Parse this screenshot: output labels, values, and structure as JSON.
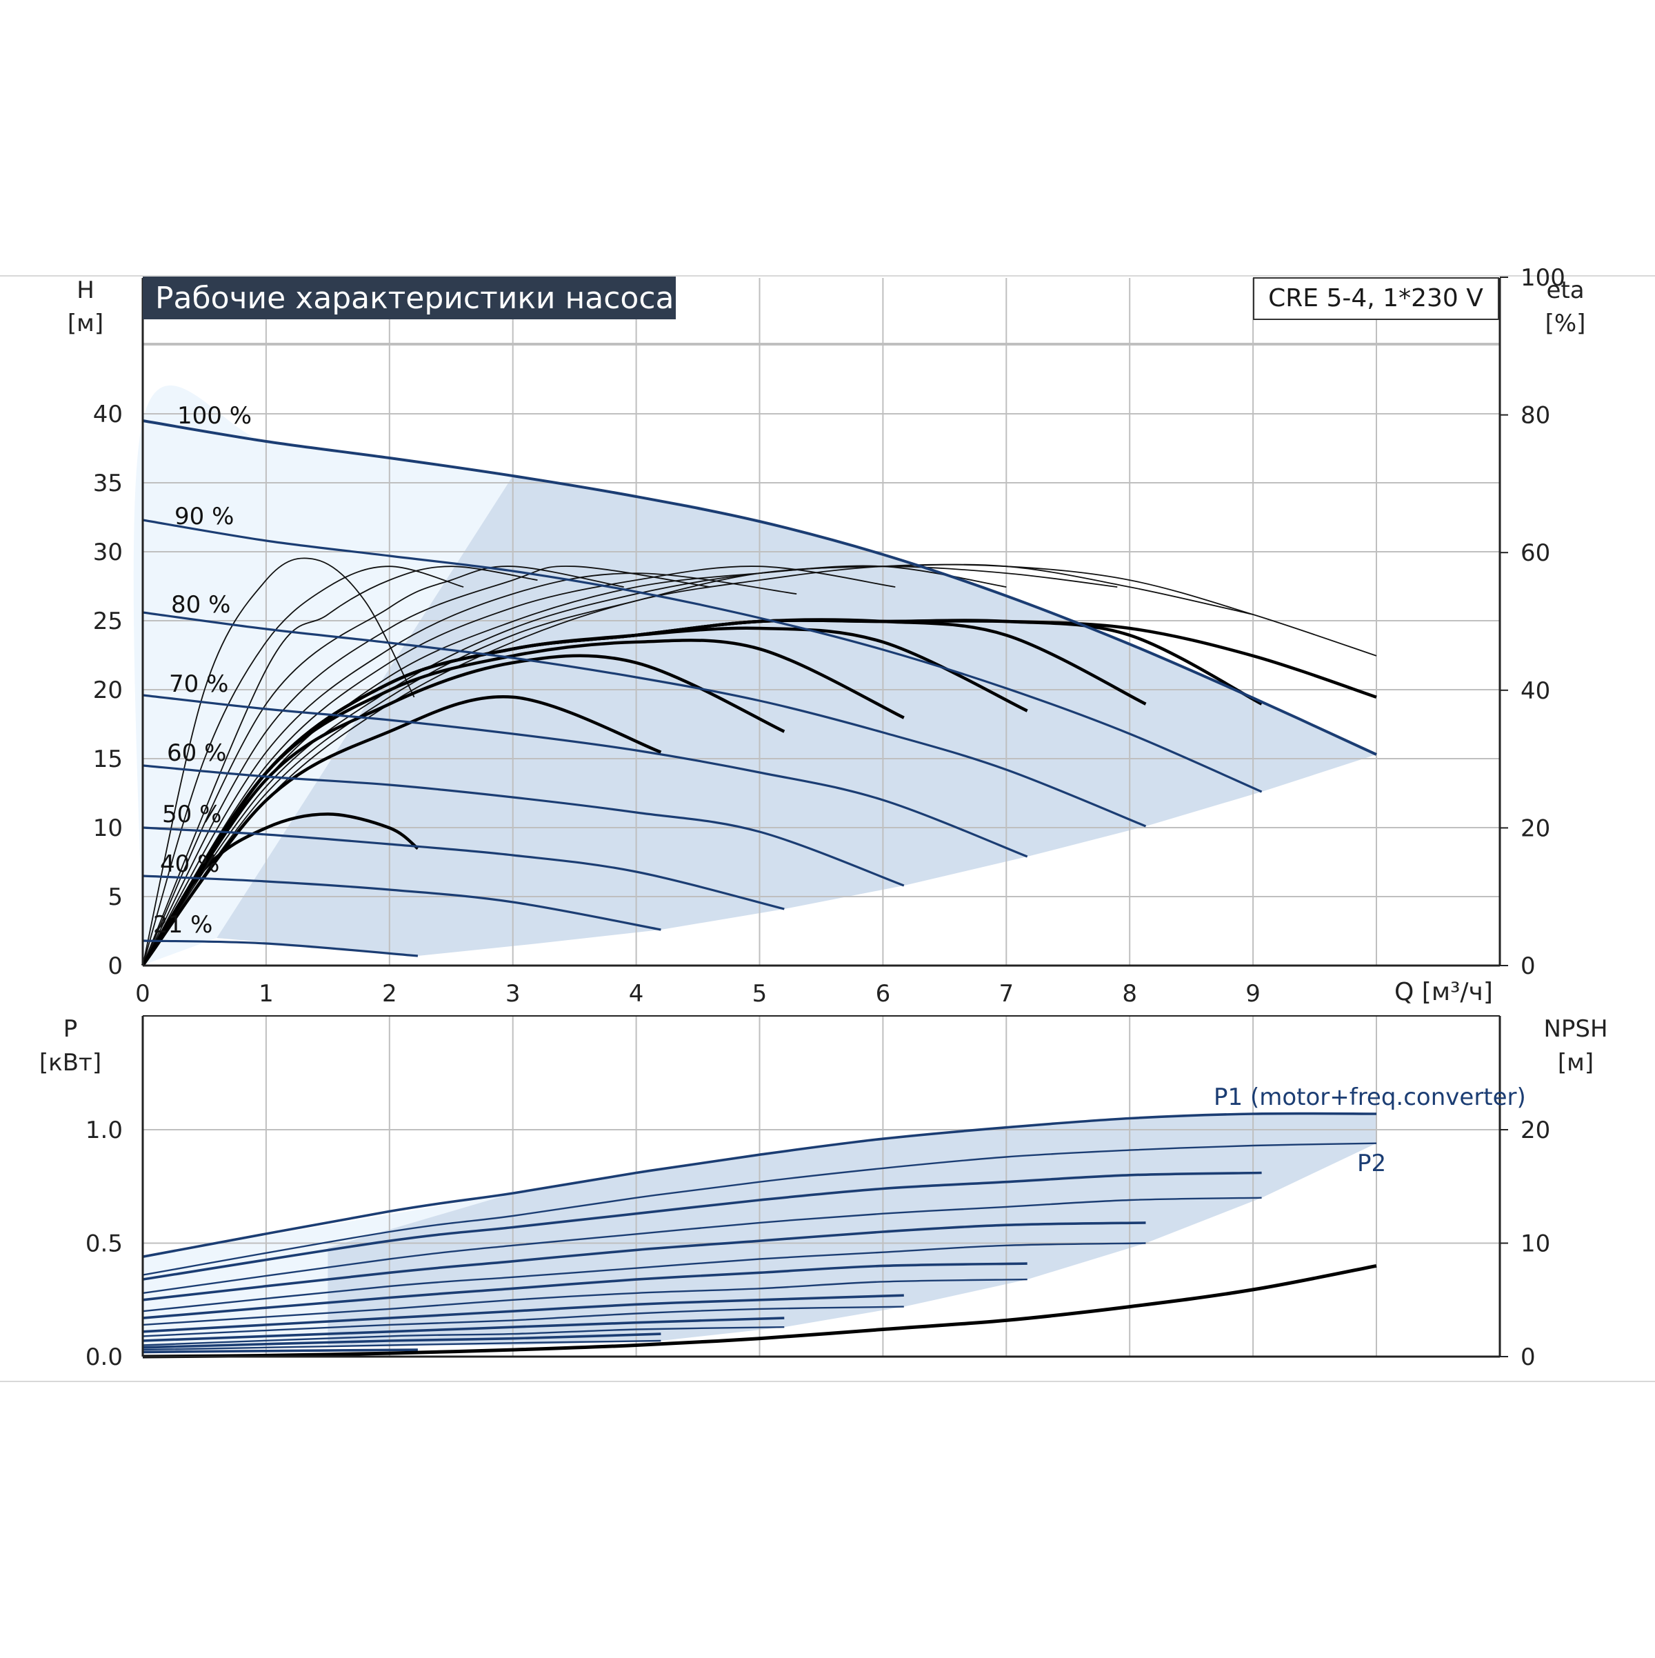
{
  "title": "Рабочие характеристики насоса",
  "model": "CRE 5-4, 1*230 V",
  "colors": {
    "curve": "#1b3d73",
    "zone": "#d2dfee",
    "zone_light": "#eef6fd",
    "grid": "#bfbfbf",
    "title_bg": "#2f3c4f"
  },
  "chart_data": [
    {
      "type": "line",
      "name": "head",
      "xlabel": "Q [м³/ч]",
      "ylabel_symbol": "H",
      "ylabel_unit": "[м]",
      "y2label_symbol": "eta",
      "y2label_unit": "[%]",
      "xlim": [
        0,
        10
      ],
      "ylim": [
        0,
        45
      ],
      "y2lim": [
        0,
        100
      ],
      "x_ticks": [
        0,
        1,
        2,
        3,
        4,
        5,
        6,
        7,
        8,
        9
      ],
      "y_ticks": [
        0,
        5,
        10,
        15,
        20,
        25,
        30,
        35,
        40
      ],
      "y2_ticks": [
        0,
        20,
        40,
        60,
        80,
        100
      ],
      "grid": true,
      "speed_curves": [
        {
          "name": "100 %",
          "x": [
            0,
            1,
            2,
            3,
            4,
            5,
            6,
            7,
            8,
            9,
            10
          ],
          "y": [
            39.5,
            38.0,
            36.8,
            35.5,
            34.0,
            32.2,
            29.8,
            26.8,
            23.3,
            19.4,
            15.3
          ]
        },
        {
          "name": "90 %",
          "x": [
            0,
            1,
            2,
            3,
            4,
            5,
            6,
            7,
            8,
            9.07
          ],
          "y": [
            32.3,
            30.8,
            29.7,
            28.6,
            27.1,
            25.2,
            22.9,
            20.1,
            16.8,
            12.6
          ]
        },
        {
          "name": "80 %",
          "x": [
            0,
            1,
            2,
            3,
            4,
            5,
            6,
            7,
            8.13
          ],
          "y": [
            25.6,
            24.4,
            23.4,
            22.3,
            20.9,
            19.2,
            16.9,
            14.2,
            10.1
          ]
        },
        {
          "name": "70 %",
          "x": [
            0,
            1,
            2,
            3,
            4,
            5,
            6,
            7.17
          ],
          "y": [
            19.6,
            18.6,
            17.8,
            16.8,
            15.6,
            14.0,
            12.0,
            7.9
          ]
        },
        {
          "name": "60 %",
          "x": [
            0,
            1,
            2,
            3,
            4,
            5,
            6.17
          ],
          "y": [
            14.5,
            13.7,
            13.1,
            12.2,
            11.1,
            9.7,
            5.8
          ]
        },
        {
          "name": "50 %",
          "x": [
            0,
            1,
            2,
            3,
            4,
            5.2
          ],
          "y": [
            10.0,
            9.5,
            8.8,
            8.0,
            6.8,
            4.1
          ]
        },
        {
          "name": "40 %",
          "x": [
            0,
            1,
            2,
            3,
            4.2
          ],
          "y": [
            6.5,
            6.1,
            5.5,
            4.6,
            2.6
          ]
        },
        {
          "name": "21 %",
          "x": [
            0,
            1,
            2.23
          ],
          "y": [
            1.8,
            1.6,
            0.7
          ]
        }
      ],
      "efficiency_curves": [
        {
          "x": [
            0,
            0.5,
            1,
            1.4,
            1.8,
            2.2
          ],
          "y": [
            0,
            40,
            56,
            59,
            53,
            39
          ]
        },
        {
          "x": [
            0,
            0.5,
            1,
            1.5,
            2,
            2.6
          ],
          "y": [
            0,
            30,
            47,
            55,
            58,
            55
          ]
        },
        {
          "x": [
            0,
            1,
            1.5,
            2,
            2.5,
            3.2
          ],
          "y": [
            0,
            43,
            51,
            56,
            58,
            56
          ]
        },
        {
          "x": [
            0,
            1,
            2,
            2.5,
            3,
            3.9
          ],
          "y": [
            0,
            38,
            52,
            56,
            58,
            55
          ]
        },
        {
          "x": [
            0,
            1,
            2,
            3,
            3.5,
            4.6
          ],
          "y": [
            0,
            34,
            49,
            56,
            58,
            55
          ]
        },
        {
          "x": [
            0,
            1,
            2,
            3,
            4,
            5.3
          ],
          "y": [
            0,
            31,
            46,
            54,
            57,
            54
          ]
        },
        {
          "x": [
            0,
            1,
            2,
            3,
            4,
            5,
            6.1
          ],
          "y": [
            0,
            29,
            44,
            52,
            56,
            58,
            55
          ]
        },
        {
          "x": [
            0,
            1,
            2,
            3,
            4,
            5,
            6,
            7.0
          ],
          "y": [
            0,
            27,
            42,
            50,
            55,
            57,
            58,
            55
          ]
        },
        {
          "x": [
            0,
            1,
            2,
            3,
            4,
            5,
            6,
            7,
            7.9
          ],
          "y": [
            0,
            26,
            40,
            49,
            54,
            57,
            58,
            57,
            55
          ]
        },
        {
          "x": [
            0,
            1,
            2,
            3,
            4,
            5,
            6,
            7,
            8,
            9.0
          ],
          "y": [
            0,
            25,
            39,
            48,
            53,
            57,
            58,
            58,
            55,
            51
          ]
        },
        {
          "x": [
            0,
            1,
            2,
            3,
            4,
            5,
            6,
            7,
            8,
            9,
            10
          ],
          "y": [
            0,
            24,
            38,
            47,
            53,
            56,
            58,
            58,
            56,
            51,
            45
          ]
        }
      ],
      "efficiency_thick_curves": [
        {
          "x": [
            0,
            0.5,
            1,
            1.5,
            2,
            2.23
          ],
          "y": [
            0,
            14,
            20,
            22,
            20,
            17
          ]
        },
        {
          "x": [
            0,
            1,
            2,
            3,
            4.2
          ],
          "y": [
            0,
            24,
            34,
            39,
            31
          ]
        },
        {
          "x": [
            0,
            1,
            2,
            3,
            4,
            5.2
          ],
          "y": [
            0,
            27,
            38,
            44,
            44,
            34
          ]
        },
        {
          "x": [
            0,
            1,
            2,
            3,
            4,
            5,
            6.17
          ],
          "y": [
            0,
            28,
            40,
            45,
            47,
            46,
            36
          ]
        },
        {
          "x": [
            0,
            1,
            2,
            3,
            4,
            5,
            6,
            7.17
          ],
          "y": [
            0,
            28,
            41,
            46,
            48,
            49,
            47,
            37
          ]
        },
        {
          "x": [
            0,
            1,
            2,
            3,
            4,
            5,
            6,
            7,
            8.13
          ],
          "y": [
            0,
            28,
            41,
            46,
            48,
            50,
            50,
            48,
            38
          ]
        },
        {
          "x": [
            0,
            1,
            2,
            3,
            4,
            5,
            6,
            7,
            8,
            9.07
          ],
          "y": [
            0,
            28,
            41,
            46,
            48,
            50,
            50,
            50,
            48,
            38
          ]
        },
        {
          "x": [
            0,
            1,
            2,
            3,
            4,
            5,
            6,
            7,
            8,
            9,
            10
          ],
          "y": [
            0,
            28,
            41,
            46,
            48,
            50,
            50,
            50,
            49,
            45,
            39
          ]
        }
      ],
      "operating_zone": {
        "x": [
          0.6,
          3.0,
          3.6,
          4.5,
          5.5,
          6.5,
          7.5,
          8.5,
          9.5,
          10,
          9.07,
          8.13,
          7.17,
          6.17,
          5.2,
          4.2,
          3.2,
          2.23,
          0.6
        ],
        "y": [
          2.0,
          35.5,
          34.7,
          33.3,
          31.1,
          28.4,
          25.1,
          21.4,
          17.3,
          15.3,
          12.6,
          10.1,
          7.9,
          5.8,
          4.1,
          2.6,
          1.6,
          0.7,
          2.0
        ]
      }
    },
    {
      "type": "line",
      "name": "power",
      "ylabel_symbol": "P",
      "ylabel_unit": "[кВт]",
      "y2label_symbol": "NPSH",
      "y2label_unit": "[м]",
      "xlim": [
        0,
        10
      ],
      "ylim": [
        0,
        1.4
      ],
      "y2lim": [
        0,
        28
      ],
      "y_ticks": [
        0.0,
        0.5,
        1.0
      ],
      "y_tick_labels": [
        "0.0",
        "0.5",
        "1.0"
      ],
      "y2_ticks": [
        0,
        10,
        20
      ],
      "grid": true,
      "series_labels": {
        "p1": "P1 (motor+freq.converter)",
        "p2": "P2"
      },
      "p1_curves": [
        {
          "x": [
            0,
            2,
            3,
            4,
            5,
            6,
            7,
            8,
            9,
            10
          ],
          "y": [
            0.44,
            0.64,
            0.72,
            0.81,
            0.89,
            0.96,
            1.01,
            1.05,
            1.07,
            1.07
          ]
        },
        {
          "x": [
            0,
            2,
            3,
            4,
            5,
            6,
            7,
            8,
            9.07
          ],
          "y": [
            0.34,
            0.51,
            0.57,
            0.63,
            0.69,
            0.74,
            0.77,
            0.8,
            0.81
          ]
        },
        {
          "x": [
            0,
            2,
            3,
            4,
            5,
            6,
            7,
            8.13
          ],
          "y": [
            0.25,
            0.37,
            0.42,
            0.47,
            0.51,
            0.55,
            0.58,
            0.59
          ]
        },
        {
          "x": [
            0,
            2,
            3,
            4,
            5,
            6,
            7.17
          ],
          "y": [
            0.17,
            0.26,
            0.3,
            0.34,
            0.37,
            0.4,
            0.41
          ]
        },
        {
          "x": [
            0,
            2,
            3,
            4,
            5,
            6.17
          ],
          "y": [
            0.11,
            0.17,
            0.2,
            0.23,
            0.25,
            0.27
          ]
        },
        {
          "x": [
            0,
            2,
            3,
            4,
            5.2
          ],
          "y": [
            0.07,
            0.11,
            0.13,
            0.15,
            0.17
          ]
        },
        {
          "x": [
            0,
            2,
            3,
            4.2
          ],
          "y": [
            0.04,
            0.07,
            0.08,
            0.1
          ]
        },
        {
          "x": [
            0,
            1,
            2.23
          ],
          "y": [
            0.02,
            0.025,
            0.03
          ]
        }
      ],
      "p2_curves": [
        {
          "x": [
            0,
            2,
            3,
            4,
            5,
            6,
            7,
            8,
            9,
            10
          ],
          "y": [
            0.36,
            0.55,
            0.62,
            0.7,
            0.77,
            0.83,
            0.88,
            0.91,
            0.93,
            0.94
          ]
        },
        {
          "x": [
            0,
            2,
            3,
            4,
            5,
            6,
            7,
            8,
            9.07
          ],
          "y": [
            0.28,
            0.43,
            0.49,
            0.54,
            0.59,
            0.63,
            0.66,
            0.69,
            0.7
          ]
        },
        {
          "x": [
            0,
            2,
            3,
            4,
            5,
            6,
            7,
            8.13
          ],
          "y": [
            0.2,
            0.31,
            0.35,
            0.39,
            0.43,
            0.46,
            0.49,
            0.5
          ]
        },
        {
          "x": [
            0,
            2,
            3,
            4,
            5,
            6,
            7.17
          ],
          "y": [
            0.14,
            0.21,
            0.25,
            0.28,
            0.3,
            0.33,
            0.34
          ]
        },
        {
          "x": [
            0,
            2,
            3,
            4,
            5,
            6.17
          ],
          "y": [
            0.09,
            0.14,
            0.16,
            0.19,
            0.21,
            0.22
          ]
        },
        {
          "x": [
            0,
            2,
            3,
            4,
            5.2
          ],
          "y": [
            0.05,
            0.09,
            0.1,
            0.12,
            0.13
          ]
        },
        {
          "x": [
            0,
            2,
            3,
            4.2
          ],
          "y": [
            0.03,
            0.05,
            0.06,
            0.07
          ]
        }
      ],
      "npsh_curve": {
        "x": [
          0,
          1,
          2,
          3,
          4,
          5,
          6,
          7,
          8,
          9,
          10
        ],
        "y": [
          0,
          0.1,
          0.3,
          0.6,
          1.0,
          1.6,
          2.4,
          3.2,
          4.4,
          5.9,
          8.0
        ]
      },
      "operating_zone": {
        "x": [
          1.5,
          3.0,
          4.0,
          5.0,
          6.0,
          7.0,
          8.0,
          9.0,
          10.0,
          10.0,
          9.07,
          8.13,
          7.17,
          6.17,
          5.2,
          4.2,
          3.0,
          1.5
        ],
        "y": [
          0.48,
          0.72,
          0.81,
          0.89,
          0.96,
          1.01,
          1.05,
          1.07,
          1.07,
          0.94,
          0.7,
          0.5,
          0.34,
          0.22,
          0.13,
          0.07,
          0.05,
          0.05
        ]
      }
    }
  ]
}
